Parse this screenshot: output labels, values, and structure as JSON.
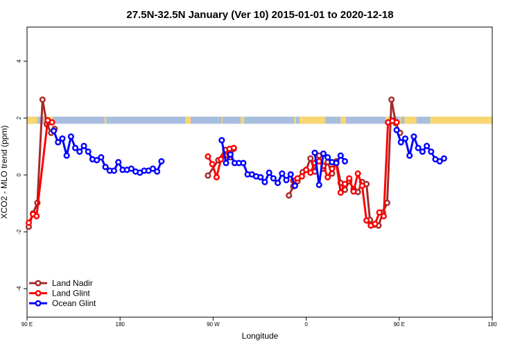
{
  "chart_data": {
    "type": "line",
    "title": "27.5N-32.5N January (Ver 10)   2015-01-01 to 2020-12-18",
    "xlabel": "Longitude",
    "ylabel": "XCO2 - MLO trend (ppm)",
    "xlim": [
      -90,
      180
    ],
    "ylim": [
      -5,
      5.2
    ],
    "x_ticks": [
      {
        "value": -90,
        "label": "90 E"
      },
      {
        "value": -36,
        "label": "180"
      },
      {
        "value": 18,
        "label": "90 W"
      },
      {
        "value": 72,
        "label": "0"
      },
      {
        "value": 126,
        "label": "90 E"
      },
      {
        "value": 180,
        "label": "180"
      }
    ],
    "y_ticks": [
      -4,
      -2,
      0,
      2,
      4
    ],
    "grid": false,
    "legend_position": "bottom-left",
    "land_ocean_strip": {
      "y_range": [
        1.8,
        2.05
      ],
      "ocean_color": "#a8bedf",
      "land_color": "#f8d772",
      "land_segments": [
        [
          -90,
          -84
        ],
        [
          -80,
          -75
        ],
        [
          -45,
          -44
        ],
        [
          2,
          5
        ],
        [
          23,
          23.5
        ],
        [
          34,
          36
        ],
        [
          65,
          66
        ],
        [
          68,
          83
        ],
        [
          92,
          95
        ],
        [
          118,
          120
        ],
        [
          126,
          127
        ],
        [
          129,
          136
        ],
        [
          144,
          180
        ]
      ]
    },
    "series": [
      {
        "name": "Land Nadir",
        "color": "#a52a2a",
        "segments": [
          [
            [
              -89,
              -1.82
            ],
            [
              -86.5,
              -1.35
            ],
            [
              -84,
              -0.98
            ],
            [
              -81,
              2.65
            ],
            [
              -78.5,
              1.78
            ],
            [
              -76,
              1.48
            ],
            [
              -74,
              1.62
            ]
          ],
          [
            [
              15,
              -0.02
            ],
            [
              21,
              0.52
            ],
            [
              25,
              0.88
            ],
            [
              28,
              0.62
            ],
            [
              30,
              0.92
            ]
          ],
          [
            [
              62,
              -0.72
            ],
            [
              64.5,
              -0.4
            ],
            [
              67,
              -0.22
            ],
            [
              70,
              0.1
            ],
            [
              72,
              0.18
            ],
            [
              74.5,
              0.58
            ],
            [
              77,
              0.12
            ],
            [
              79.5,
              0.68
            ],
            [
              82,
              0.22
            ],
            [
              84.5,
              0.45
            ],
            [
              87,
              0.05
            ],
            [
              89.5,
              0.48
            ],
            [
              92,
              -0.28
            ],
            [
              94.5,
              -0.52
            ],
            [
              97,
              -0.22
            ],
            [
              99.5,
              -0.5
            ],
            [
              102,
              -0.6
            ],
            [
              104.5,
              -0.25
            ],
            [
              107,
              -0.32
            ],
            [
              109,
              -1.58
            ],
            [
              111.5,
              -1.75
            ],
            [
              114,
              -1.78
            ],
            [
              116.5,
              -1.32
            ],
            [
              119,
              -0.98
            ],
            [
              121.5,
              2.65
            ],
            [
              124,
              1.82
            ],
            [
              126.5,
              1.48
            ]
          ]
        ]
      },
      {
        "name": "Land Glint",
        "color": "#ff0000",
        "segments": [
          [
            [
              -89,
              -1.68
            ],
            [
              -86.5,
              -1.38
            ],
            [
              -84.5,
              -1.45
            ],
            [
              -78,
              1.92
            ],
            [
              -75.5,
              1.85
            ]
          ],
          [
            [
              15,
              0.65
            ],
            [
              17.5,
              0.38
            ],
            [
              20,
              -0.08
            ],
            [
              22.5,
              0.55
            ],
            [
              25,
              0.68
            ],
            [
              27.5,
              0.92
            ],
            [
              30,
              0.95
            ]
          ],
          [
            [
              64.5,
              -0.2
            ],
            [
              67,
              -0.12
            ],
            [
              69.5,
              -0.05
            ],
            [
              72,
              0.18
            ],
            [
              74.5,
              0.08
            ],
            [
              77,
              0.42
            ],
            [
              79.5,
              0.48
            ],
            [
              82,
              0.32
            ],
            [
              84.5,
              -0.08
            ],
            [
              87,
              0.22
            ],
            [
              89.5,
              0.42
            ],
            [
              92,
              -0.62
            ],
            [
              94.5,
              -0.32
            ],
            [
              97,
              -0.12
            ],
            [
              99.5,
              -0.58
            ],
            [
              102,
              0.05
            ],
            [
              104.5,
              -0.38
            ],
            [
              107,
              -1.6
            ],
            [
              109.5,
              -1.78
            ],
            [
              112,
              -1.72
            ],
            [
              114.5,
              -1.32
            ],
            [
              117,
              -1.45
            ],
            [
              119.5,
              1.85
            ],
            [
              122,
              1.9
            ],
            [
              124.5,
              1.85
            ]
          ]
        ]
      },
      {
        "name": "Ocean Glint",
        "color": "#0000ff",
        "segments": [
          [
            [
              -74.5,
              1.55
            ],
            [
              -72,
              1.15
            ],
            [
              -69.5,
              1.28
            ],
            [
              -67,
              0.68
            ],
            [
              -64.5,
              1.35
            ],
            [
              -62,
              0.95
            ],
            [
              -59.5,
              0.82
            ],
            [
              -57,
              1.02
            ],
            [
              -54.5,
              0.82
            ],
            [
              -52,
              0.55
            ],
            [
              -49.5,
              0.52
            ],
            [
              -47,
              0.62
            ],
            [
              -44.5,
              0.28
            ],
            [
              -42,
              0.15
            ],
            [
              -39.5,
              0.15
            ],
            [
              -37,
              0.45
            ],
            [
              -34.5,
              0.18
            ],
            [
              -32,
              0.18
            ],
            [
              -29.5,
              0.22
            ],
            [
              -27,
              0.12
            ],
            [
              -24.5,
              0.08
            ],
            [
              -22,
              0.15
            ],
            [
              -19.5,
              0.15
            ],
            [
              -17,
              0.22
            ],
            [
              -14.5,
              0.12
            ],
            [
              -12,
              0.48
            ]
          ],
          [
            [
              23,
              1.22
            ],
            [
              25.5,
              0.42
            ],
            [
              28,
              0.72
            ],
            [
              30.5,
              0.42
            ],
            [
              33,
              0.42
            ],
            [
              35.5,
              0.42
            ],
            [
              38,
              0.02
            ],
            [
              40.5,
              0.02
            ],
            [
              43,
              -0.05
            ],
            [
              45.5,
              -0.08
            ],
            [
              48,
              -0.25
            ],
            [
              50.5,
              0.08
            ],
            [
              53,
              -0.12
            ],
            [
              55.5,
              -0.28
            ],
            [
              58,
              0.05
            ],
            [
              60.5,
              -0.18
            ],
            [
              63,
              0.02
            ],
            [
              65.5,
              -0.38
            ]
          ],
          [
            [
              77,
              0.78
            ],
            [
              79.5,
              -0.35
            ],
            [
              82,
              0.75
            ],
            [
              84.5,
              0.62
            ],
            [
              87,
              0.45
            ],
            [
              89.5,
              0.42
            ],
            [
              92,
              0.68
            ],
            [
              94.5,
              0.48
            ]
          ],
          [
            [
              124.5,
              1.58
            ],
            [
              127,
              1.15
            ],
            [
              129.5,
              1.28
            ],
            [
              132,
              0.68
            ],
            [
              134.5,
              1.35
            ],
            [
              137,
              0.95
            ],
            [
              139.5,
              0.82
            ],
            [
              142,
              1.02
            ],
            [
              144.5,
              0.82
            ],
            [
              147,
              0.55
            ],
            [
              149.5,
              0.48
            ],
            [
              152,
              0.58
            ]
          ]
        ]
      }
    ]
  }
}
